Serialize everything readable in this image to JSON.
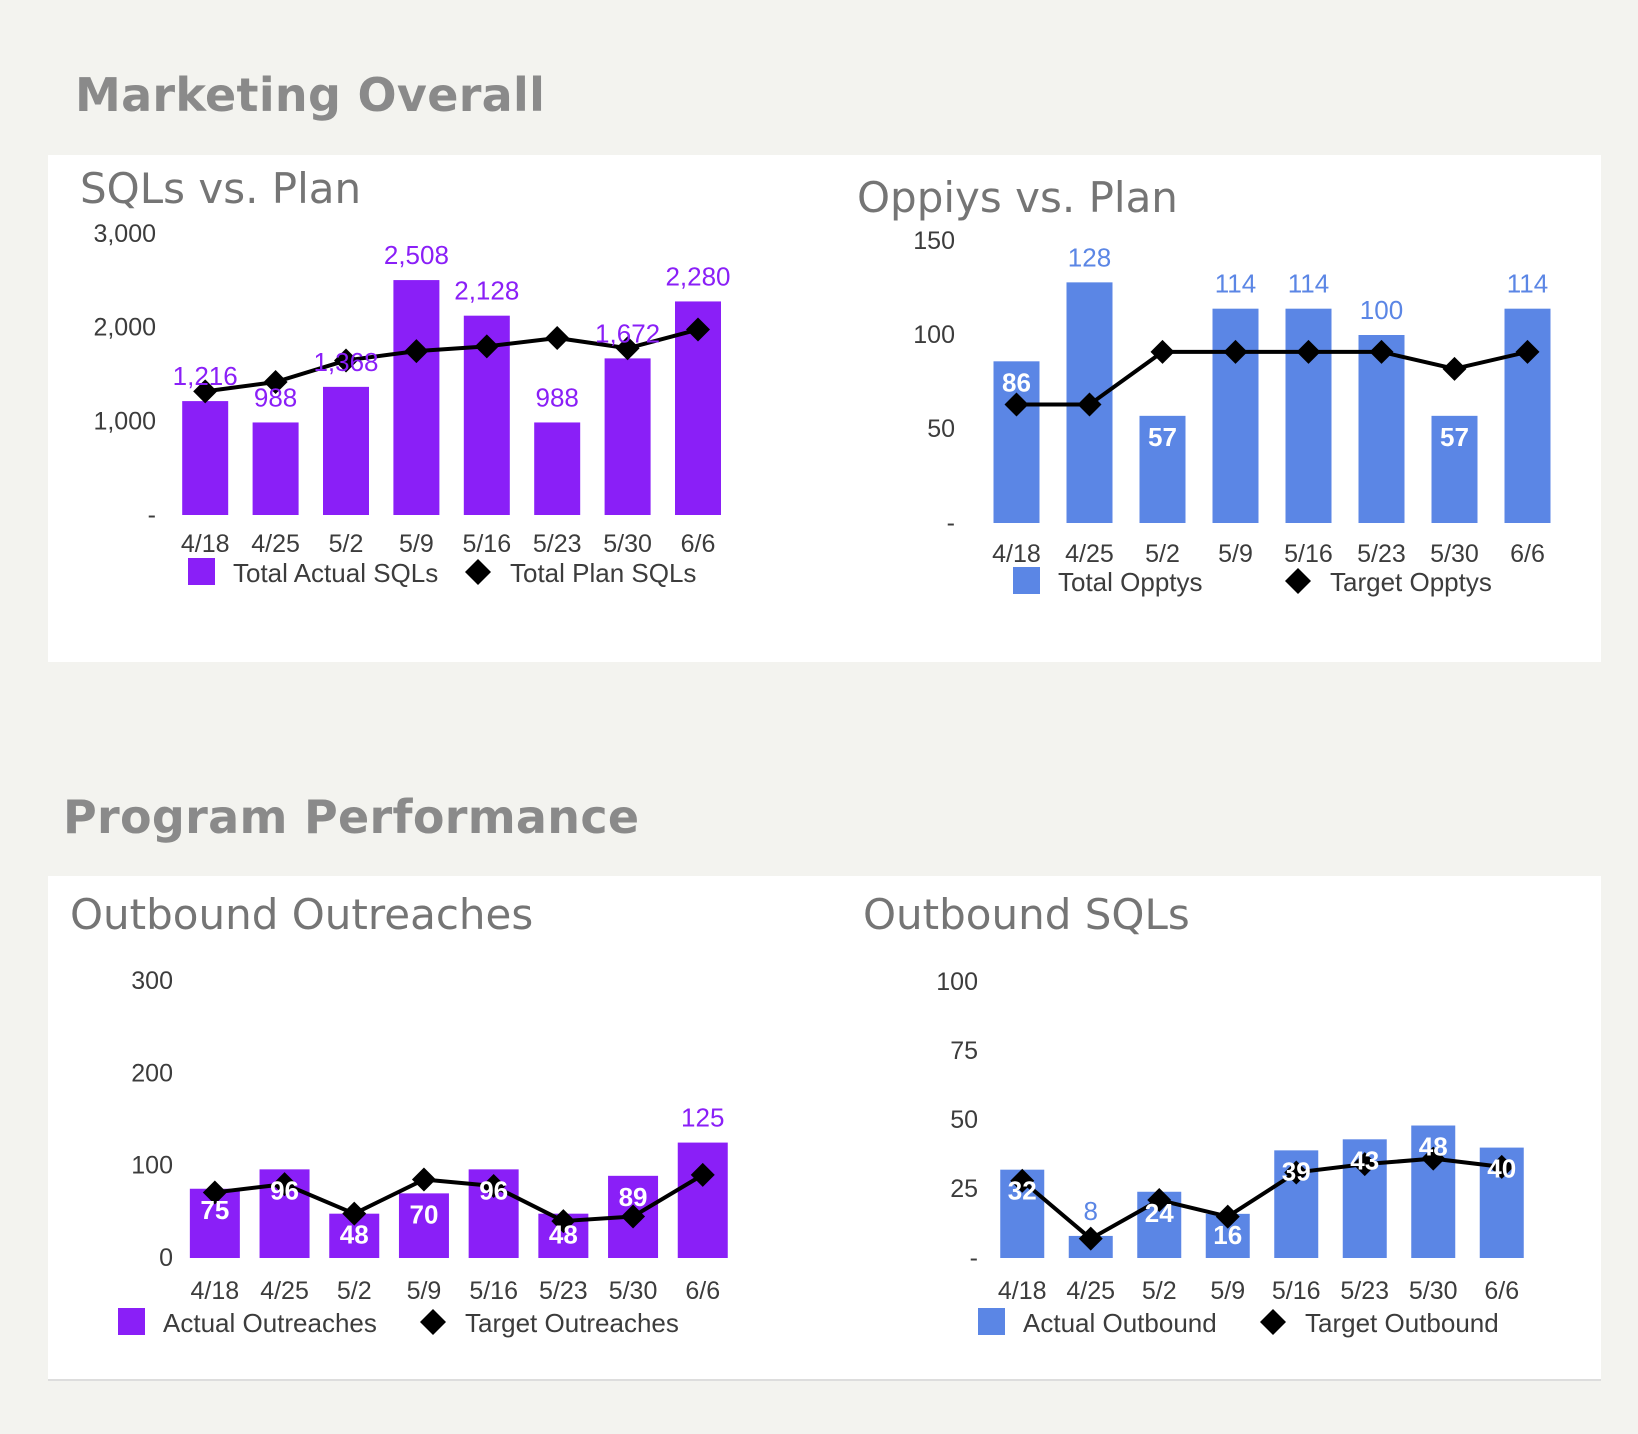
{
  "sections": {
    "marketing_overall": "Marketing Overall",
    "program_performance": "Program Performance"
  },
  "chart_data": [
    {
      "type": "bar",
      "title": "SQLs vs. Plan",
      "bar_color": "#8a1ff7",
      "label_color": "#8a1ff7",
      "categories": [
        "4/18",
        "4/25",
        "5/2",
        "5/9",
        "5/16",
        "5/23",
        "5/30",
        "6/6"
      ],
      "y_ticks": [
        "-",
        "1,000",
        "2,000",
        "3,000"
      ],
      "ylim": [
        0,
        3000
      ],
      "series": [
        {
          "name": "Total Actual SQLs",
          "kind": "bar",
          "values": [
            1216,
            988,
            1368,
            2508,
            2128,
            988,
            1672,
            2280
          ]
        },
        {
          "name": "Total Plan SQLs",
          "kind": "line",
          "values": [
            1320,
            1420,
            1650,
            1750,
            1800,
            1890,
            1780,
            1980
          ]
        }
      ],
      "data_labels": [
        "1,216",
        "988",
        "1,368",
        "2,508",
        "2,128",
        "988",
        "1,672",
        "2,280"
      ],
      "label_position": [
        "above",
        "above",
        "above",
        "above",
        "above",
        "above",
        "above",
        "above"
      ],
      "legend_position": "bottom"
    },
    {
      "type": "bar",
      "title": "Oppiys vs. Plan",
      "bar_color": "#5b86e5",
      "label_color": "#5b86e5",
      "categories": [
        "4/18",
        "4/25",
        "5/2",
        "5/9",
        "5/16",
        "5/23",
        "5/30",
        "6/6"
      ],
      "y_ticks": [
        "-",
        "50",
        "100",
        "150"
      ],
      "ylim": [
        0,
        150
      ],
      "series": [
        {
          "name": "Total Opptys",
          "kind": "bar",
          "values": [
            86,
            128,
            57,
            114,
            114,
            100,
            57,
            114
          ]
        },
        {
          "name": "Target Opptys",
          "kind": "line",
          "values": [
            63,
            63,
            91,
            91,
            91,
            91,
            82,
            91
          ]
        }
      ],
      "data_labels": [
        "86",
        "128",
        "57",
        "114",
        "114",
        "100",
        "57",
        "114"
      ],
      "label_position": [
        "inside",
        "above",
        "inside",
        "above",
        "above",
        "above",
        "inside",
        "above"
      ],
      "legend_position": "bottom"
    },
    {
      "type": "bar",
      "title": "Outbound Outreaches",
      "bar_color": "#8a1ff7",
      "label_color": "#8a1ff7",
      "categories": [
        "4/18",
        "4/25",
        "5/2",
        "5/9",
        "5/16",
        "5/23",
        "5/30",
        "6/6"
      ],
      "y_ticks": [
        "0",
        "100",
        "200",
        "300"
      ],
      "ylim": [
        0,
        300
      ],
      "series": [
        {
          "name": "Actual Outreaches",
          "kind": "bar",
          "values": [
            75,
            96,
            48,
            70,
            96,
            48,
            89,
            125
          ]
        },
        {
          "name": "Target Outreaches",
          "kind": "line",
          "values": [
            71,
            80,
            48,
            85,
            78,
            40,
            45,
            90
          ]
        }
      ],
      "data_labels": [
        "75",
        "96",
        "48",
        "70",
        "96",
        "48",
        "89",
        "125"
      ],
      "label_position": [
        "inside",
        "inside",
        "inside",
        "inside",
        "inside",
        "inside",
        "inside",
        "above"
      ],
      "legend_position": "bottom"
    },
    {
      "type": "bar",
      "title": "Outbound SQLs",
      "bar_color": "#5b86e5",
      "label_color": "#5b86e5",
      "categories": [
        "4/18",
        "4/25",
        "5/2",
        "5/9",
        "5/16",
        "5/23",
        "5/30",
        "6/6"
      ],
      "y_ticks": [
        "-",
        "25",
        "50",
        "75",
        "100"
      ],
      "ylim": [
        0,
        100
      ],
      "series": [
        {
          "name": "Actual Outbound",
          "kind": "bar",
          "values": [
            32,
            8,
            24,
            16,
            39,
            43,
            48,
            40
          ]
        },
        {
          "name": "Target Outbound",
          "kind": "line",
          "values": [
            28,
            7,
            21,
            15,
            31,
            34,
            36,
            33
          ]
        }
      ],
      "data_labels": [
        "32",
        "8",
        "24",
        "16",
        "39",
        "43",
        "48",
        "40"
      ],
      "label_position": [
        "inside",
        "above",
        "inside",
        "inside",
        "inside",
        "inside",
        "inside",
        "inside"
      ],
      "legend_position": "bottom"
    }
  ]
}
